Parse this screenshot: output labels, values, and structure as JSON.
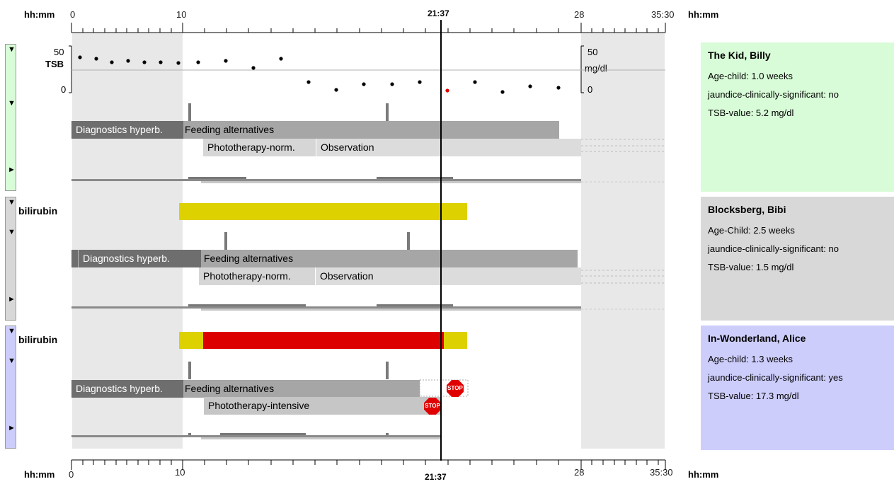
{
  "axis": {
    "unit_label": "hh:mm",
    "ticks": [
      "0",
      "10",
      "28",
      "35:30"
    ],
    "cursor_time": "21:37"
  },
  "tsb_plot": {
    "label": "TSB",
    "left_max": "50",
    "left_min": "0",
    "right_max": "50",
    "right_unit": "mg/dl",
    "right_min": "0"
  },
  "lanes": [
    {
      "bars": [
        {
          "label": "Diagnostics hyperb."
        },
        {
          "label": "Feeding alternatives"
        },
        {
          "label": "Phototherapy-norm."
        },
        {
          "label": "Observation"
        }
      ]
    },
    {
      "title": "bilirubin",
      "bars": [
        {
          "label": "Diagnostics hyperb."
        },
        {
          "label": "Feeding alternatives"
        },
        {
          "label": "Phototherapy-norm."
        },
        {
          "label": "Observation"
        }
      ]
    },
    {
      "title": "bilirubin",
      "bars": [
        {
          "label": "Diagnostics hyperb."
        },
        {
          "label": "Feeding alternatives"
        },
        {
          "label": "Phototherapy-intensive"
        }
      ],
      "stop_label": "STOP"
    }
  ],
  "patients": [
    {
      "name": "The Kid, Billy",
      "age": "Age-child: 1.0    weeks",
      "jaundice": "jaundice-clinically-significant: no",
      "tsb": "TSB-value: 5.2  mg/dl",
      "color": "#d8fcd8"
    },
    {
      "name": "Blocksberg, Bibi",
      "age": "Age-Child: 2.5    weeks",
      "jaundice": "jaundice-clinically-significant: no",
      "tsb": "TSB-value: 1.5    mg/dl",
      "color": "#d8d8d8"
    },
    {
      "name": "In-Wonderland, Alice",
      "age": "Age-child: 1.3    weeks",
      "jaundice": "jaundice-clinically-significant: yes",
      "tsb": "TSB-value: 17.3   mg/dl",
      "color": "#cdcdfc"
    }
  ],
  "colors": {
    "dark_bar": "#6e6e6e",
    "mid_bar": "#a6a6a6",
    "light_bar": "#d6d6d6",
    "yellow": "#ddd100",
    "red": "#dd0000",
    "shade": "#e8e8e8"
  }
}
